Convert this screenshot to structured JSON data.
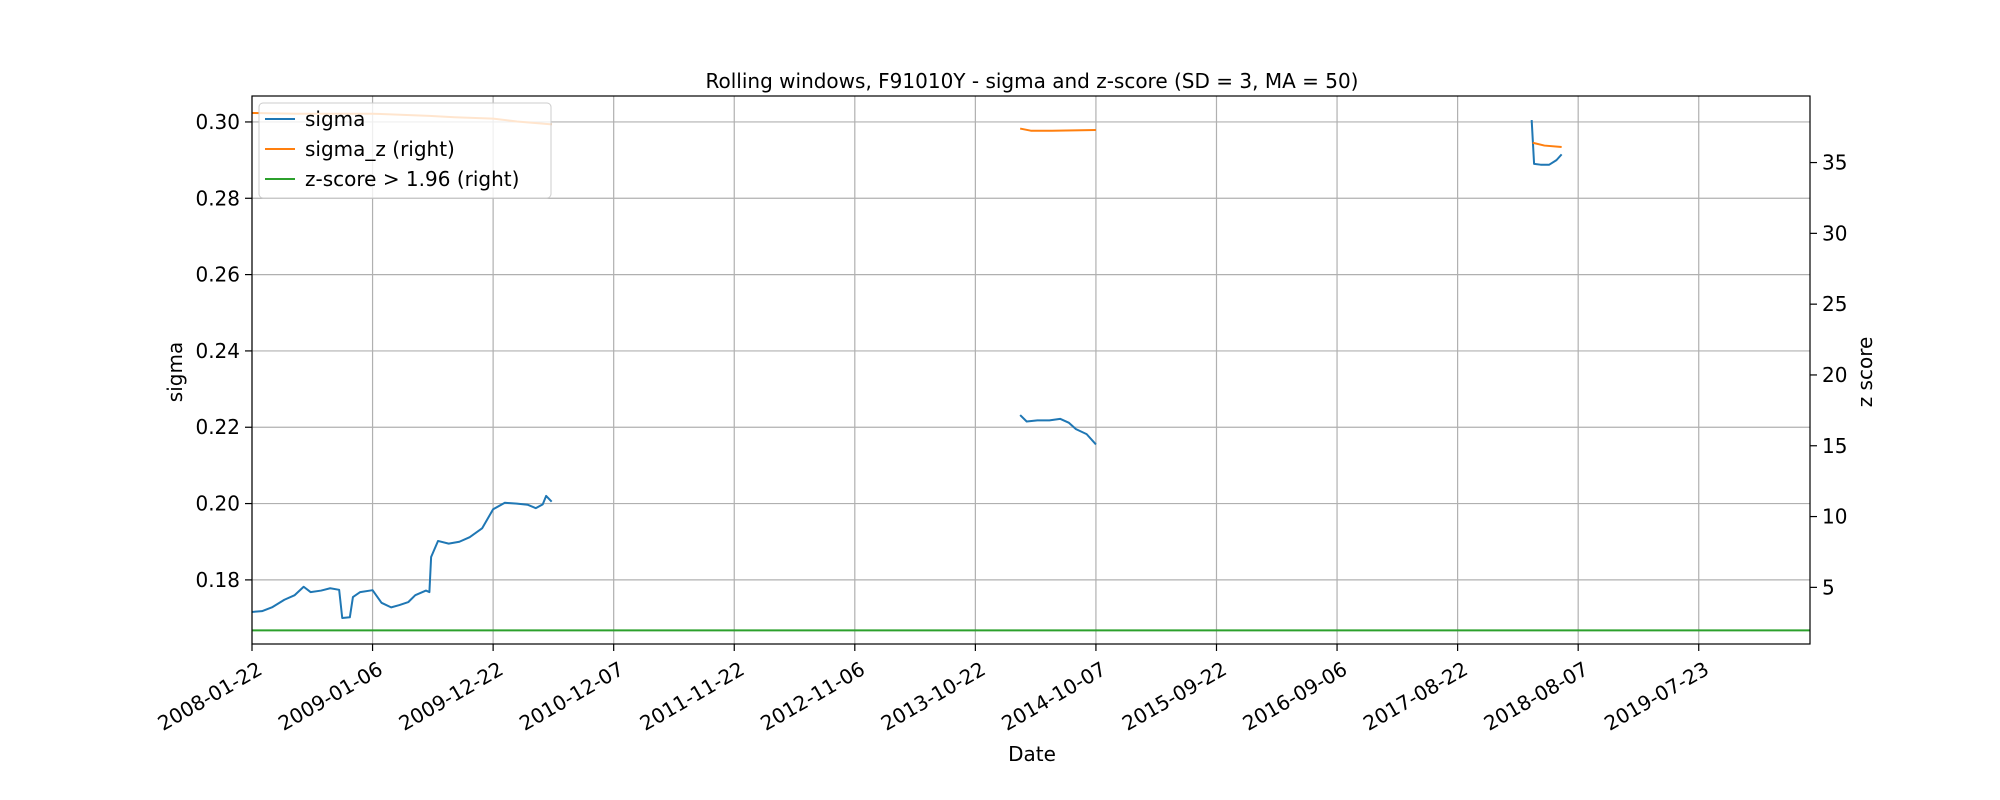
{
  "chart_data": {
    "type": "line",
    "title": "Rolling windows, F91010Y - sigma and z-score (SD = 3, MA = 50)",
    "xlabel": "Date",
    "ylabel": "sigma",
    "ylabel_right": "z score",
    "x_tick_labels": [
      "2008-01-22",
      "2009-01-06",
      "2009-12-22",
      "2010-12-07",
      "2011-11-22",
      "2012-11-06",
      "2013-10-22",
      "2014-10-07",
      "2015-09-22",
      "2016-09-06",
      "2017-08-22",
      "2018-08-07",
      "2019-07-23"
    ],
    "xlim": [
      "2008-01-22",
      "2020-06-10"
    ],
    "ylim": [
      0.1632,
      0.3068
    ],
    "ylim_right": [
      1.0,
      39.7
    ],
    "y_ticks": [
      0.18,
      0.2,
      0.22,
      0.24,
      0.26,
      0.28,
      0.3
    ],
    "y_tick_labels": [
      "0.18",
      "0.20",
      "0.22",
      "0.24",
      "0.26",
      "0.28",
      "0.30"
    ],
    "y_ticks_right": [
      5,
      10,
      15,
      20,
      25,
      30,
      35
    ],
    "y_tick_labels_right": [
      "5",
      "10",
      "15",
      "20",
      "25",
      "30",
      "35"
    ],
    "grid": true,
    "legend_position": "top-left",
    "series": [
      {
        "name": "sigma",
        "axis": "left",
        "color": "#1f77b4",
        "segments": [
          [
            [
              "2008-01-22",
              0.1716
            ],
            [
              "2008-02-20",
              0.1718
            ],
            [
              "2008-03-20",
              0.1728
            ],
            [
              "2008-04-25",
              0.1748
            ],
            [
              "2008-05-25",
              0.176
            ],
            [
              "2008-06-20",
              0.1782
            ],
            [
              "2008-07-10",
              0.1768
            ],
            [
              "2008-08-10",
              0.1772
            ],
            [
              "2008-09-05",
              0.1778
            ],
            [
              "2008-10-01",
              0.1774
            ],
            [
              "2008-10-10",
              0.17
            ],
            [
              "2008-11-01",
              0.1702
            ],
            [
              "2008-11-10",
              0.1755
            ],
            [
              "2008-12-01",
              0.1768
            ],
            [
              "2009-01-06",
              0.1773
            ],
            [
              "2009-02-01",
              0.174
            ],
            [
              "2009-03-01",
              0.1728
            ],
            [
              "2009-03-25",
              0.1734
            ],
            [
              "2009-04-20",
              0.1742
            ],
            [
              "2009-05-10",
              0.176
            ],
            [
              "2009-06-10",
              0.1772
            ],
            [
              "2009-06-20",
              0.1768
            ],
            [
              "2009-06-25",
              0.186
            ],
            [
              "2009-07-15",
              0.1902
            ],
            [
              "2009-08-15",
              0.1895
            ],
            [
              "2009-09-15",
              0.19
            ],
            [
              "2009-10-15",
              0.1912
            ],
            [
              "2009-11-20",
              0.1935
            ],
            [
              "2009-12-22",
              0.1985
            ],
            [
              "2010-01-25",
              0.2002
            ],
            [
              "2010-03-01",
              0.2
            ],
            [
              "2010-04-01",
              0.1997
            ],
            [
              "2010-04-25",
              0.1988
            ],
            [
              "2010-05-15",
              0.1998
            ],
            [
              "2010-05-25",
              0.202
            ],
            [
              "2010-06-10",
              0.2005
            ]
          ],
          [
            [
              "2014-03-01",
              0.2232
            ],
            [
              "2014-03-20",
              0.2215
            ],
            [
              "2014-04-20",
              0.2218
            ],
            [
              "2014-05-25",
              0.2218
            ],
            [
              "2014-06-25",
              0.2222
            ],
            [
              "2014-07-20",
              0.2212
            ],
            [
              "2014-08-10",
              0.2195
            ],
            [
              "2014-09-10",
              0.2182
            ],
            [
              "2014-10-07",
              0.2155
            ]
          ],
          [
            [
              "2018-03-25",
              0.3005
            ],
            [
              "2018-04-01",
              0.289
            ],
            [
              "2018-04-20",
              0.2888
            ],
            [
              "2018-05-15",
              0.2888
            ],
            [
              "2018-06-05",
              0.29
            ],
            [
              "2018-06-20",
              0.2915
            ]
          ]
        ]
      },
      {
        "name": "sigma_z (right)",
        "axis": "right",
        "color": "#ff7f0e",
        "segments": [
          [
            [
              "2008-01-22",
              38.5
            ],
            [
              "2008-06-01",
              38.45
            ],
            [
              "2009-01-06",
              38.45
            ],
            [
              "2009-06-20",
              38.3
            ],
            [
              "2009-09-01",
              38.2
            ],
            [
              "2009-12-22",
              38.1
            ],
            [
              "2010-03-01",
              37.9
            ],
            [
              "2010-06-10",
              37.7
            ]
          ],
          [
            [
              "2014-03-01",
              37.4
            ],
            [
              "2014-04-01",
              37.25
            ],
            [
              "2014-06-01",
              37.25
            ],
            [
              "2014-10-07",
              37.3
            ]
          ],
          [
            [
              "2018-03-28",
              36.4
            ],
            [
              "2018-05-01",
              36.2
            ],
            [
              "2018-06-20",
              36.1
            ]
          ]
        ]
      },
      {
        "name": "z-score > 1.96 (right)",
        "axis": "right",
        "color": "#2ca02c",
        "segments": [
          [
            [
              "2008-01-22",
              1.96
            ],
            [
              "2020-06-10",
              1.96
            ]
          ]
        ]
      }
    ]
  }
}
